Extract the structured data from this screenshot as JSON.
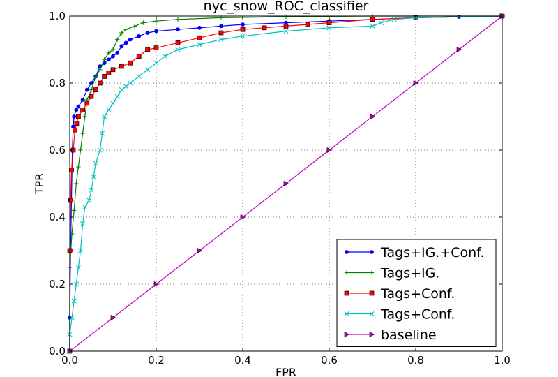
{
  "chart_data": {
    "type": "line",
    "title": "nyc_snow_ROC_classifier",
    "xlabel": "FPR",
    "ylabel": "TPR",
    "xlim": [
      0.0,
      1.0
    ],
    "ylim": [
      0.0,
      1.0
    ],
    "xticks": [
      "0.0",
      "0.2",
      "0.4",
      "0.6",
      "0.8",
      "1.0"
    ],
    "yticks": [
      "0.0",
      "0.2",
      "0.4",
      "0.6",
      "0.8",
      "1.0"
    ],
    "grid": true,
    "legend_position": "lower-right",
    "series": [
      {
        "name": "Tags+IG.+Conf.",
        "color": "#0000ff",
        "marker": "dot",
        "points": [
          [
            0,
            0
          ],
          [
            0,
            0.1
          ],
          [
            0.002,
            0.3
          ],
          [
            0.004,
            0.45
          ],
          [
            0.006,
            0.6
          ],
          [
            0.008,
            0.67
          ],
          [
            0.01,
            0.7
          ],
          [
            0.015,
            0.72
          ],
          [
            0.02,
            0.73
          ],
          [
            0.03,
            0.75
          ],
          [
            0.04,
            0.78
          ],
          [
            0.05,
            0.8
          ],
          [
            0.06,
            0.82
          ],
          [
            0.07,
            0.85
          ],
          [
            0.08,
            0.86
          ],
          [
            0.09,
            0.87
          ],
          [
            0.1,
            0.88
          ],
          [
            0.11,
            0.89
          ],
          [
            0.12,
            0.91
          ],
          [
            0.13,
            0.92
          ],
          [
            0.14,
            0.93
          ],
          [
            0.16,
            0.94
          ],
          [
            0.18,
            0.95
          ],
          [
            0.2,
            0.955
          ],
          [
            0.25,
            0.96
          ],
          [
            0.3,
            0.965
          ],
          [
            0.35,
            0.97
          ],
          [
            0.4,
            0.975
          ],
          [
            0.5,
            0.98
          ],
          [
            0.6,
            0.985
          ],
          [
            0.7,
            0.99
          ],
          [
            0.8,
            0.995
          ],
          [
            0.9,
            0.998
          ],
          [
            1.0,
            1.0
          ]
        ]
      },
      {
        "name": "Tags+IG.",
        "color": "#008000",
        "marker": "plus",
        "points": [
          [
            0,
            0
          ],
          [
            0,
            0.25
          ],
          [
            0.005,
            0.35
          ],
          [
            0.01,
            0.42
          ],
          [
            0.015,
            0.5
          ],
          [
            0.02,
            0.55
          ],
          [
            0.025,
            0.6
          ],
          [
            0.03,
            0.65
          ],
          [
            0.035,
            0.7
          ],
          [
            0.04,
            0.75
          ],
          [
            0.05,
            0.78
          ],
          [
            0.06,
            0.82
          ],
          [
            0.07,
            0.84
          ],
          [
            0.08,
            0.87
          ],
          [
            0.09,
            0.89
          ],
          [
            0.1,
            0.9
          ],
          [
            0.11,
            0.93
          ],
          [
            0.12,
            0.95
          ],
          [
            0.13,
            0.96
          ],
          [
            0.15,
            0.97
          ],
          [
            0.17,
            0.98
          ],
          [
            0.2,
            0.985
          ],
          [
            0.25,
            0.99
          ],
          [
            0.35,
            0.995
          ],
          [
            0.5,
            0.998
          ],
          [
            0.7,
            1.0
          ],
          [
            1.0,
            1.0
          ]
        ]
      },
      {
        "name": "Tags+Conf.",
        "color": "#ff0000",
        "marker": "square",
        "points": [
          [
            0,
            0
          ],
          [
            0,
            0.3
          ],
          [
            0.002,
            0.45
          ],
          [
            0.004,
            0.54
          ],
          [
            0.008,
            0.6
          ],
          [
            0.012,
            0.66
          ],
          [
            0.016,
            0.68
          ],
          [
            0.02,
            0.7
          ],
          [
            0.03,
            0.72
          ],
          [
            0.04,
            0.74
          ],
          [
            0.05,
            0.76
          ],
          [
            0.06,
            0.78
          ],
          [
            0.07,
            0.8
          ],
          [
            0.08,
            0.82
          ],
          [
            0.09,
            0.83
          ],
          [
            0.1,
            0.84
          ],
          [
            0.12,
            0.85
          ],
          [
            0.14,
            0.86
          ],
          [
            0.16,
            0.88
          ],
          [
            0.18,
            0.9
          ],
          [
            0.2,
            0.905
          ],
          [
            0.25,
            0.92
          ],
          [
            0.3,
            0.935
          ],
          [
            0.35,
            0.95
          ],
          [
            0.4,
            0.96
          ],
          [
            0.45,
            0.965
          ],
          [
            0.5,
            0.97
          ],
          [
            0.55,
            0.975
          ],
          [
            0.6,
            0.98
          ],
          [
            0.7,
            0.99
          ],
          [
            0.8,
            0.995
          ],
          [
            1.0,
            1.0
          ]
        ]
      },
      {
        "name": "Tags+Conf.",
        "color": "#00bfbf",
        "marker": "x",
        "points": [
          [
            0,
            0
          ],
          [
            0,
            0.05
          ],
          [
            0.005,
            0.1
          ],
          [
            0.01,
            0.15
          ],
          [
            0.015,
            0.2
          ],
          [
            0.02,
            0.25
          ],
          [
            0.025,
            0.3
          ],
          [
            0.03,
            0.38
          ],
          [
            0.035,
            0.43
          ],
          [
            0.045,
            0.45
          ],
          [
            0.05,
            0.48
          ],
          [
            0.055,
            0.52
          ],
          [
            0.06,
            0.56
          ],
          [
            0.07,
            0.6
          ],
          [
            0.075,
            0.65
          ],
          [
            0.08,
            0.7
          ],
          [
            0.09,
            0.72
          ],
          [
            0.1,
            0.74
          ],
          [
            0.11,
            0.76
          ],
          [
            0.12,
            0.78
          ],
          [
            0.13,
            0.79
          ],
          [
            0.14,
            0.8
          ],
          [
            0.16,
            0.82
          ],
          [
            0.18,
            0.84
          ],
          [
            0.2,
            0.86
          ],
          [
            0.22,
            0.88
          ],
          [
            0.25,
            0.9
          ],
          [
            0.3,
            0.915
          ],
          [
            0.35,
            0.93
          ],
          [
            0.4,
            0.94
          ],
          [
            0.5,
            0.955
          ],
          [
            0.6,
            0.965
          ],
          [
            0.7,
            0.97
          ],
          [
            0.72,
            0.98
          ],
          [
            0.75,
            0.99
          ],
          [
            0.8,
            0.995
          ],
          [
            1.0,
            1.0
          ]
        ]
      },
      {
        "name": "baseline",
        "color": "#bf00bf",
        "marker": "triangle-right",
        "points": [
          [
            0,
            0
          ],
          [
            0.1,
            0.1
          ],
          [
            0.2,
            0.2
          ],
          [
            0.3,
            0.3
          ],
          [
            0.4,
            0.4
          ],
          [
            0.5,
            0.5
          ],
          [
            0.6,
            0.6
          ],
          [
            0.7,
            0.7
          ],
          [
            0.8,
            0.8
          ],
          [
            0.9,
            0.9
          ],
          [
            1.0,
            1.0
          ]
        ]
      }
    ]
  }
}
